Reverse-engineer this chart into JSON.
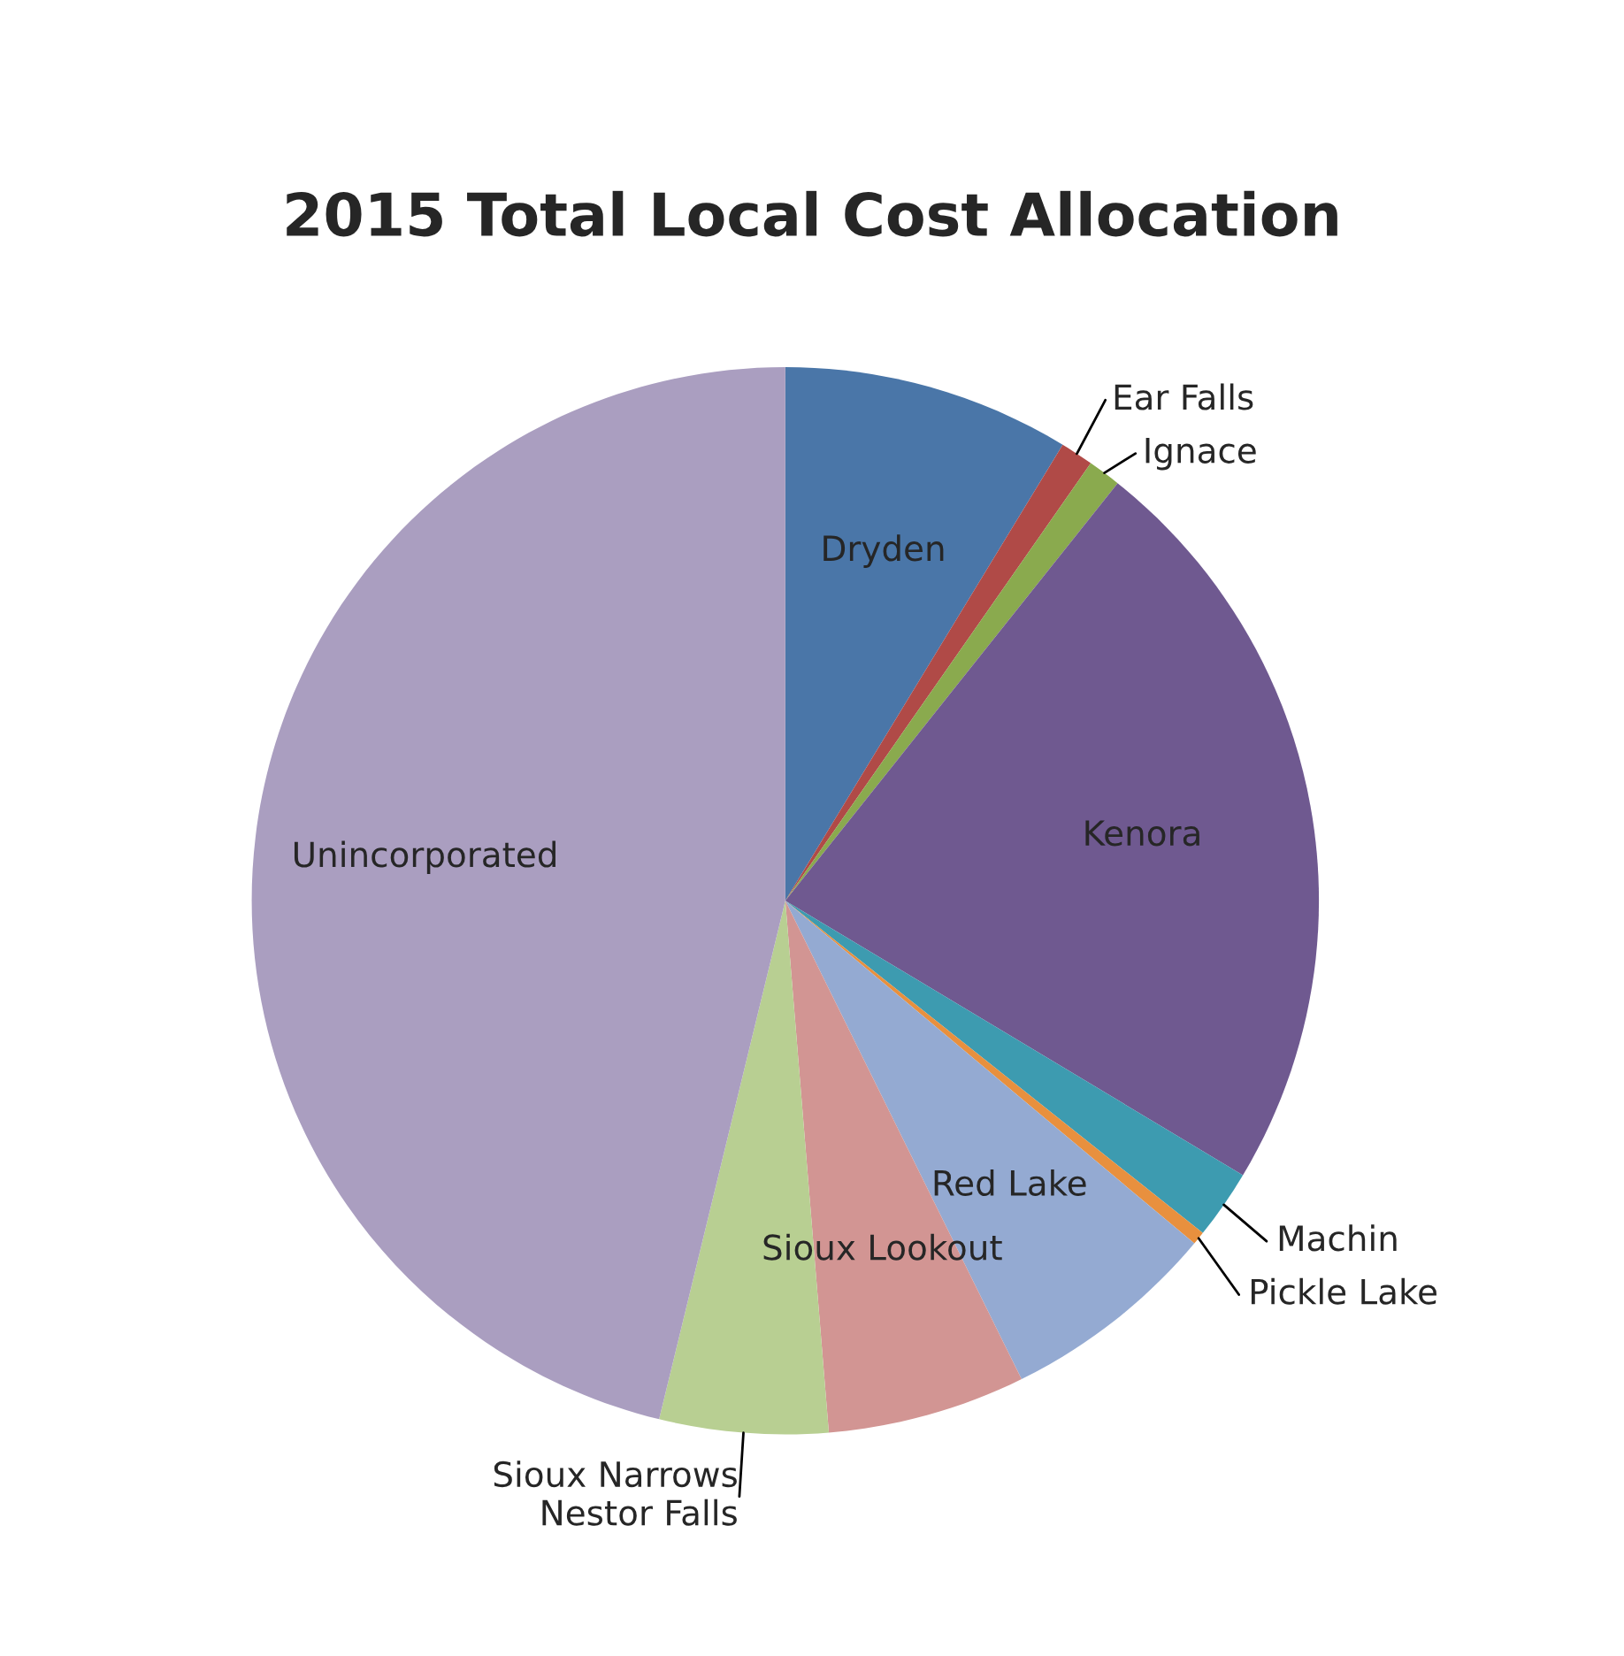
{
  "chart_data": {
    "type": "pie",
    "title": "2015 Total Local Cost Allocation",
    "categories": [
      "Dryden",
      "Ear Falls",
      "Ignace",
      "Kenora",
      "Machin",
      "Pickle Lake",
      "Red Lake",
      "Sioux Lookout",
      "Sioux Narrows\nNestor Falls",
      "Unincorporated"
    ],
    "values": [
      8.7,
      1.0,
      1.0,
      22.9,
      2.1,
      0.4,
      6.6,
      6.0,
      5.1,
      46.2
    ],
    "colors": [
      "#4a76a8",
      "#b04a47",
      "#8aaa4e",
      "#6f5990",
      "#3d9bb0",
      "#e8903e",
      "#94aad2",
      "#d29593",
      "#b8cf92",
      "#aa9ec0"
    ]
  }
}
